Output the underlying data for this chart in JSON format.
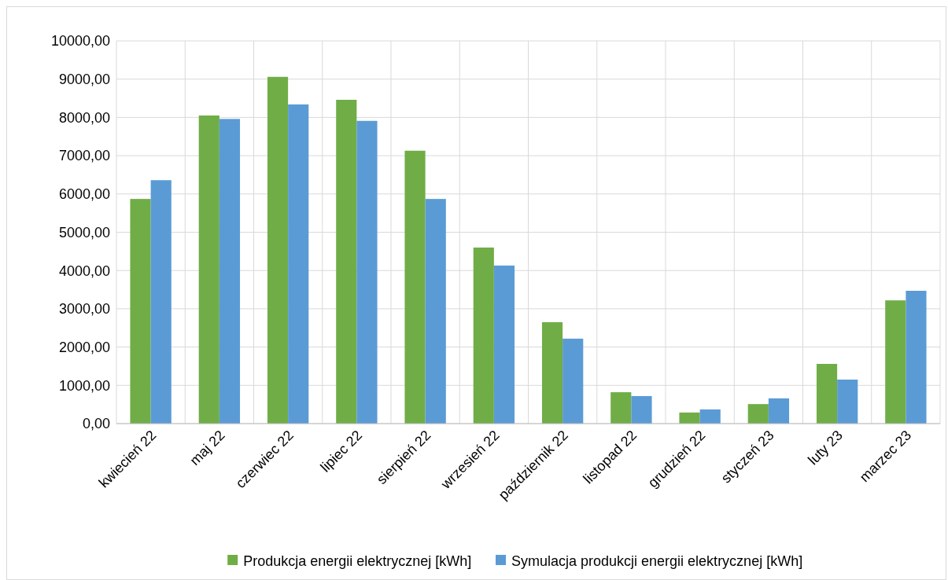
{
  "chart_data": {
    "type": "bar",
    "categories": [
      "kwiecień 22",
      "maj 22",
      "czerwiec 22",
      "lipiec 22",
      "sierpień 22",
      "wrzesień 22",
      "październik 22",
      "listopad 22",
      "grudzień 22",
      "styczeń 23",
      "luty 23",
      "marzec 23"
    ],
    "series": [
      {
        "name": "Produkcja energii elektrycznej [kWh]",
        "color": "#70ad47",
        "values": [
          5870,
          8050,
          9060,
          8460,
          7130,
          4600,
          2650,
          820,
          290,
          510,
          1560,
          3220
        ]
      },
      {
        "name": "Symulacja produkcji energii elektrycznej [kWh]",
        "color": "#5b9bd5",
        "values": [
          6360,
          7960,
          8340,
          7910,
          5870,
          4130,
          2220,
          720,
          370,
          660,
          1150,
          3470
        ]
      }
    ],
    "ylim": [
      0,
      10000
    ],
    "yticks": [
      {
        "value": 0,
        "label": "0,00"
      },
      {
        "value": 1000,
        "label": "1000,00"
      },
      {
        "value": 2000,
        "label": "2000,00"
      },
      {
        "value": 3000,
        "label": "3000,00"
      },
      {
        "value": 4000,
        "label": "4000,00"
      },
      {
        "value": 5000,
        "label": "5000,00"
      },
      {
        "value": 6000,
        "label": "6000,00"
      },
      {
        "value": 7000,
        "label": "7000,00"
      },
      {
        "value": 8000,
        "label": "8000,00"
      },
      {
        "value": 9000,
        "label": "9000,00"
      },
      {
        "value": 10000,
        "label": "10000,00"
      }
    ],
    "grid": true,
    "legend": "bottom"
  }
}
